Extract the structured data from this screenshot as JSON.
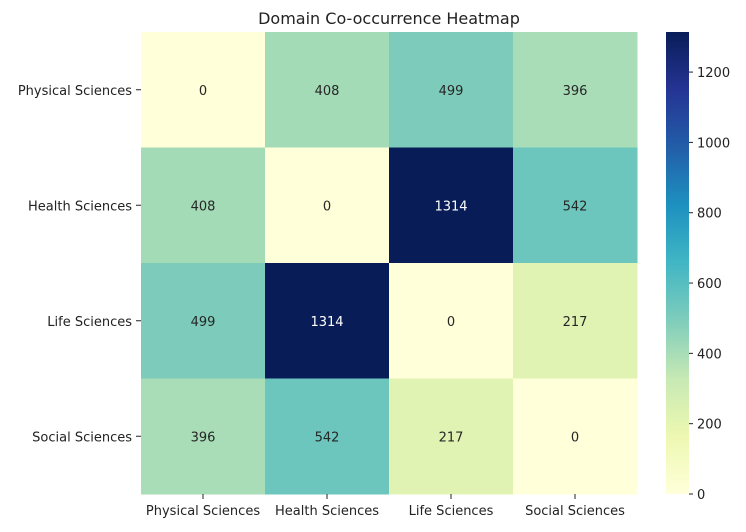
{
  "chart_data": {
    "type": "heatmap",
    "title": "Domain Co-occurrence Heatmap",
    "xlabel": "",
    "ylabel": "",
    "x_categories": [
      "Physical Sciences",
      "Health Sciences",
      "Life Sciences",
      "Social Sciences"
    ],
    "y_categories": [
      "Physical Sciences",
      "Health Sciences",
      "Life Sciences",
      "Social Sciences"
    ],
    "values": [
      [
        0,
        408,
        499,
        396
      ],
      [
        408,
        0,
        1314,
        542
      ],
      [
        499,
        1314,
        0,
        217
      ],
      [
        396,
        542,
        217,
        0
      ]
    ],
    "color_range": [
      0,
      1314
    ],
    "colormap": "YlGnBu",
    "colorbar_ticks": [
      0,
      200,
      400,
      600,
      800,
      1000,
      1200
    ],
    "annotations": true
  }
}
